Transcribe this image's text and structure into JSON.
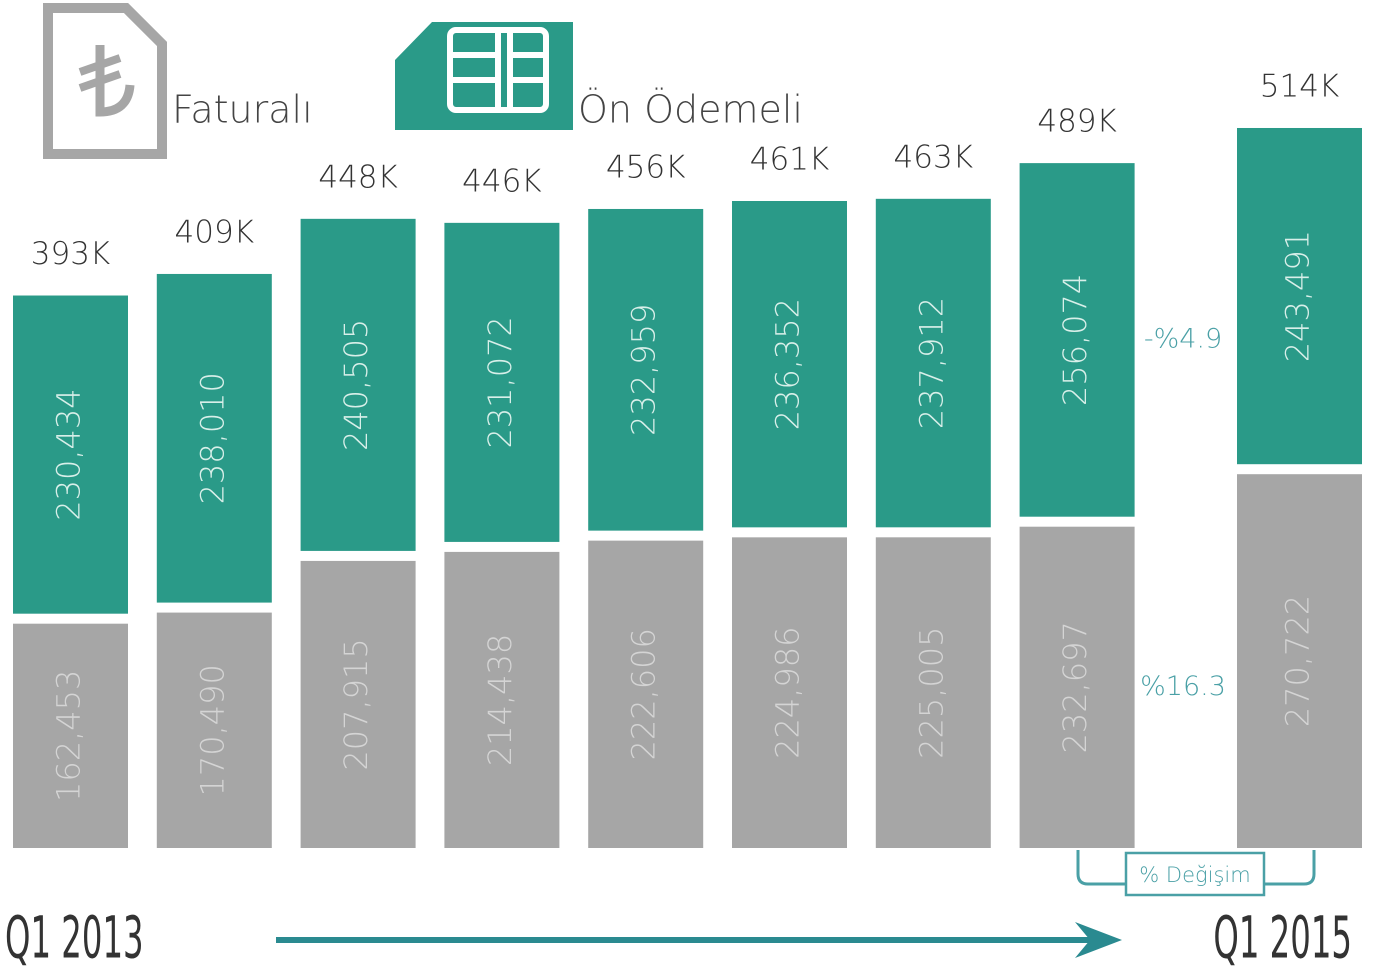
{
  "chart_data": {
    "type": "stacked_bar",
    "categories": [
      "Q1 2013",
      null,
      null,
      null,
      null,
      null,
      null,
      null,
      "Q1 2015"
    ],
    "series": [
      {
        "name": "Faturalı",
        "color": "#a6a6a6",
        "values": [
          162453,
          170490,
          207915,
          214438,
          222606,
          224986,
          225005,
          232697,
          270722
        ],
        "value_labels": [
          "162,453",
          "170,490",
          "207,915",
          "214,438",
          "222,606",
          "224,986",
          "225,005",
          "232,697",
          "270,722"
        ]
      },
      {
        "name": "Ön Ödemeli",
        "color": "#2a9a88",
        "values": [
          230434,
          238010,
          240505,
          231072,
          232959,
          236352,
          237912,
          256074,
          243491
        ],
        "value_labels": [
          "230,434",
          "238,010",
          "240,505",
          "231,072",
          "232,959",
          "236,352",
          "237,912",
          "256,074",
          "243,491"
        ]
      }
    ],
    "total_labels": [
      "393K",
      "409K",
      "448K",
      "446K",
      "456K",
      "461K",
      "463K",
      "489K",
      "514K"
    ],
    "ylim": [
      0,
      520000
    ],
    "change_title": "% Değişim",
    "changes": [
      {
        "series": "Faturalı",
        "label": "%16.3"
      },
      {
        "series": "Ön Ödemeli",
        "label": "-%4.9"
      }
    ]
  }
}
